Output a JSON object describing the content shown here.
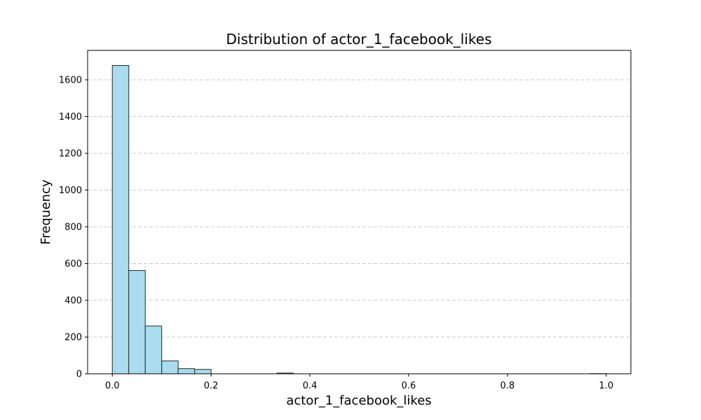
{
  "chart_data": {
    "type": "bar",
    "title": "Distribution of actor_1_facebook_likes",
    "xlabel": "actor_1_facebook_likes",
    "ylabel": "Frequency",
    "xlim": [
      -0.05,
      1.05
    ],
    "ylim": [
      0,
      1760
    ],
    "x_ticks": [
      0.0,
      0.2,
      0.4,
      0.6,
      0.8,
      1.0
    ],
    "x_tick_labels": [
      "0.0",
      "0.2",
      "0.4",
      "0.6",
      "0.8",
      "1.0"
    ],
    "y_ticks": [
      0,
      200,
      400,
      600,
      800,
      1000,
      1200,
      1400,
      1600
    ],
    "y_tick_labels": [
      "0",
      "200",
      "400",
      "600",
      "800",
      "1000",
      "1200",
      "1400",
      "1600"
    ],
    "grid": "y-dashed",
    "bin_edges": [
      0.0,
      0.0333,
      0.0667,
      0.1,
      0.1333,
      0.1667,
      0.2,
      0.2333,
      0.2667,
      0.3,
      0.3333,
      0.3667,
      0.4,
      0.4333,
      0.4667,
      0.5,
      0.5333,
      0.5667,
      0.6,
      0.6333,
      0.6667,
      0.7,
      0.7333,
      0.7667,
      0.8,
      0.8333,
      0.8667,
      0.9,
      0.9333,
      0.9667,
      1.0
    ],
    "values": [
      1678,
      562,
      260,
      70,
      28,
      24,
      0,
      0,
      0,
      0,
      4,
      0,
      0,
      0,
      0,
      0,
      0,
      0,
      0,
      0,
      0,
      0,
      0,
      0,
      0,
      0,
      0,
      0,
      0,
      1
    ],
    "colors": {
      "bar_fill": "#a8dcee",
      "bar_edge": "#2b2b2b",
      "grid": "#c8c8c8"
    }
  }
}
